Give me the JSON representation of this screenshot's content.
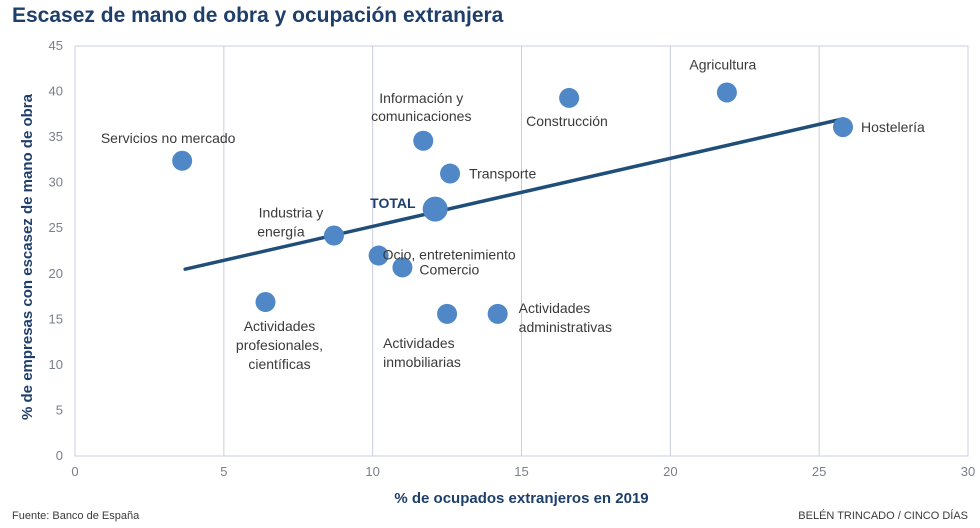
{
  "title": "Escasez de mano de obra y ocupación extranjera",
  "source": "Fuente: Banco de España",
  "credit": "BELÉN TRINCADO / CINCO DÍAS",
  "colors": {
    "point": "#4f87c7",
    "trend": "#1f4e79",
    "grid": "#c9cde0",
    "title": "#1f3f6b"
  },
  "chart_data": {
    "type": "scatter",
    "title": "Escasez de mano de obra y ocupación extranjera",
    "xlabel": "% de ocupados extranjeros en 2019",
    "ylabel": "% de empresas con escasez de mano de obra",
    "xlim": [
      0,
      30
    ],
    "ylim": [
      0,
      45
    ],
    "xticks": [
      0,
      5,
      10,
      15,
      20,
      25,
      30
    ],
    "yticks": [
      0,
      5,
      10,
      15,
      20,
      25,
      30,
      35,
      40,
      45
    ],
    "grid": "vertical",
    "points": [
      {
        "label": "Servicios no mercado",
        "x": 3.6,
        "y": 32.4
      },
      {
        "label": "Actividades profesionales, científicas",
        "x": 6.4,
        "y": 16.9
      },
      {
        "label": "Industria y energía",
        "x": 8.7,
        "y": 24.2
      },
      {
        "label": "Ocio, entretenimiento",
        "x": 10.2,
        "y": 22.0
      },
      {
        "label": "Comercio",
        "x": 11.0,
        "y": 20.7
      },
      {
        "label": "Información y comunicaciones",
        "x": 11.7,
        "y": 34.6
      },
      {
        "label": "TOTAL",
        "x": 12.1,
        "y": 27.1,
        "emphasis": true
      },
      {
        "label": "Actividades inmobiliarias",
        "x": 12.5,
        "y": 15.6
      },
      {
        "label": "Transporte",
        "x": 12.6,
        "y": 31.0
      },
      {
        "label": "Actividades administrativas",
        "x": 14.2,
        "y": 15.6
      },
      {
        "label": "Construcción",
        "x": 16.6,
        "y": 39.3
      },
      {
        "label": "Agricultura",
        "x": 21.9,
        "y": 39.9
      },
      {
        "label": "Hostelería",
        "x": 25.8,
        "y": 36.1
      }
    ],
    "trendline": {
      "x": [
        3.7,
        25.8
      ],
      "y": [
        20.5,
        37.0
      ]
    }
  }
}
